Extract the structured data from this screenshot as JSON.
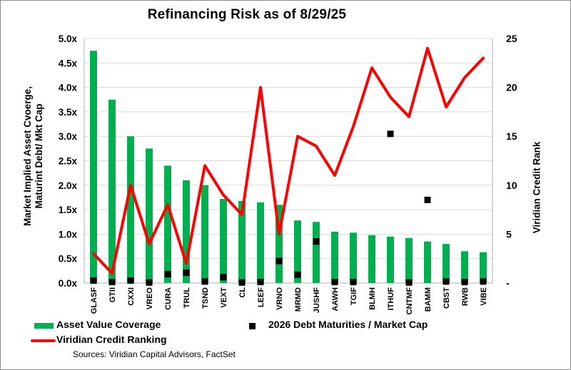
{
  "title": "Refinancing Risk as of 8/29/25",
  "source_note": "Sources: Viridian Capital Advisors, FactSet",
  "y_axis_left": {
    "title_line1": "Market Implied Asset Cvoerge,",
    "title_line2": "Maturint Debt/ Mkt Cap",
    "tick_labels": [
      "5.0x",
      "4.5x",
      "4.0x",
      "3.5x",
      "3.0x",
      "2.5x",
      "2.0x",
      "1.5x",
      "1.0x",
      "0.5x",
      "0.0x"
    ]
  },
  "y_axis_right": {
    "title": "Viridian Credit Rank",
    "tick_labels": [
      "25",
      "20",
      "15",
      "10",
      "5",
      "-"
    ],
    "tick_values": [
      25,
      20,
      15,
      10,
      5,
      0
    ]
  },
  "legend": {
    "asset_value_coverage": "Asset Value Coverage",
    "viridian_credit_ranking": "Viridian Credit Ranking",
    "debt_maturities": "2026 Debt Maturities / Market Cap"
  },
  "colors": {
    "bar_green": "#00B050",
    "line_red": "#FF0000",
    "marker_black": "#000000",
    "gridline": "#D9D9D9",
    "axis_line": "#AFAFAF"
  },
  "chart_data": {
    "type": "combo (bar + scatter on left axis, line on right axis)",
    "title": "Refinancing Risk as of 8/29/25",
    "categories": [
      "GLASF",
      "GTII",
      "CXXI",
      "VREO",
      "CURA",
      "TRUL",
      "TSND",
      "VEXT",
      "CL",
      "LEEF",
      "VRNO",
      "MRMD",
      "JUSHF",
      "AAWH",
      "TGIF",
      "BLMH",
      "ITHUF",
      "CNTMF",
      "BAMM",
      "CBST",
      "RWB",
      "VIBE"
    ],
    "series": [
      {
        "name": "Asset Value Coverage",
        "type": "bar",
        "axis": "left",
        "color": "#00B050",
        "values": [
          4.75,
          3.75,
          3.0,
          2.75,
          2.4,
          2.1,
          2.0,
          1.72,
          1.68,
          1.65,
          1.6,
          1.28,
          1.25,
          1.05,
          1.03,
          0.98,
          0.95,
          0.92,
          0.85,
          0.8,
          0.65,
          0.63
        ]
      },
      {
        "name": "2026 Debt Maturities / Market Cap",
        "type": "scatter",
        "axis": "left",
        "marker": "black-square",
        "color": "#000000",
        "values": [
          0.05,
          0.02,
          0.05,
          0.01,
          0.18,
          0.21,
          0.03,
          0.12,
          0.01,
          0.02,
          0.45,
          0.17,
          0.85,
          0.02,
          0.02,
          null,
          3.05,
          0.01,
          1.7,
          0.03,
          0.02,
          0.03
        ]
      },
      {
        "name": "Viridian Credit Ranking",
        "type": "line",
        "axis": "right",
        "color": "#FF0000",
        "values": [
          3,
          1,
          10,
          4,
          8,
          2,
          12,
          9,
          7,
          20,
          5,
          15,
          14,
          11,
          16,
          22,
          19,
          17,
          24,
          18,
          21,
          23
        ]
      }
    ],
    "left_axis": {
      "label": "Market Implied Asset Cvoerge, Maturint Debt/ Mkt Cap",
      "min": 0,
      "max": 5,
      "step": 0.5,
      "tick_suffix": "x"
    },
    "right_axis": {
      "label": "Viridian Credit Rank",
      "min": 0,
      "max": 25,
      "step": 5
    },
    "grid": "horizontal gridlines on, every 0.5 left-axis units",
    "legend_position": "bottom-left, two columns"
  }
}
